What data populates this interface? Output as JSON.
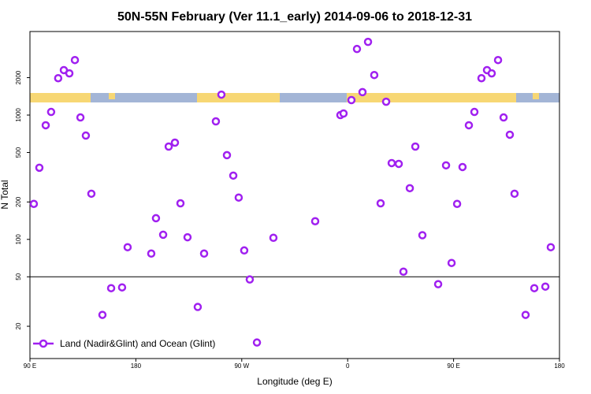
{
  "chart_data": {
    "type": "scatter",
    "title": "50N-55N February (Ver 11.1_early)   2014-09-06 to 2018-12-31",
    "x_label": "Longitude (deg E)",
    "y_label": "N Total",
    "xlim": [
      90,
      540
    ],
    "xticks": [
      {
        "value": 90,
        "label": "90 E"
      },
      {
        "value": 180,
        "label": "180"
      },
      {
        "value": 270,
        "label": "90 W"
      },
      {
        "value": 360,
        "label": "0"
      },
      {
        "value": 450,
        "label": "90 E"
      },
      {
        "value": 540,
        "label": "180"
      }
    ],
    "ylim": [
      11,
      4700
    ],
    "y_log": true,
    "yticks": [
      20,
      50,
      100,
      200,
      500,
      1000,
      2000
    ],
    "hline": 50,
    "legend_position": "bottom-left",
    "series": [
      {
        "name": "Land (Nadir&Glint) and Ocean (Glint)",
        "color": "#a020f0",
        "x": [
          93.3,
          98,
          103.4,
          108,
          114,
          118.8,
          123.5,
          128.2,
          132.9,
          137.5,
          142.2,
          151.6,
          159,
          168.3,
          173,
          193.1,
          197.1,
          203.2,
          207.9,
          213.2,
          217.9,
          223.9,
          232.6,
          238,
          248,
          252.7,
          257.4,
          262.8,
          267.4,
          272.1,
          276.8,
          282.9,
          296.9,
          332.4,
          353.8,
          356.5,
          363.2,
          367.9,
          372.6,
          377.3,
          382.6,
          388,
          392.7,
          397.4,
          403.4,
          407.4,
          412.8,
          417.5,
          423.5,
          436.9,
          443.6,
          448.3,
          453,
          457.6,
          463,
          467.7,
          473.7,
          478.4,
          482.4,
          487.8,
          492.5,
          497.8,
          501.8,
          511.2,
          518.6,
          528,
          532.6
        ],
        "values": [
          193,
          377,
          828,
          1060,
          1980,
          2300,
          2165,
          2770,
          957,
          684,
          233,
          24.7,
          40.5,
          41.1,
          86.5,
          76.9,
          148,
          109,
          558,
          600,
          195,
          104,
          28.6,
          76.9,
          890,
          1460,
          476,
          326,
          217,
          81.5,
          47.6,
          14.8,
          103,
          140,
          1000,
          1030,
          1320,
          3400,
          1530,
          3880,
          2100,
          195,
          1280,
          411,
          405,
          55,
          258,
          558,
          108,
          43.6,
          394,
          64.6,
          193,
          382,
          828,
          1060,
          1980,
          2300,
          2165,
          2770,
          957,
          695,
          233,
          24.7,
          40.5,
          41.7,
          86.5
        ]
      }
    ]
  }
}
